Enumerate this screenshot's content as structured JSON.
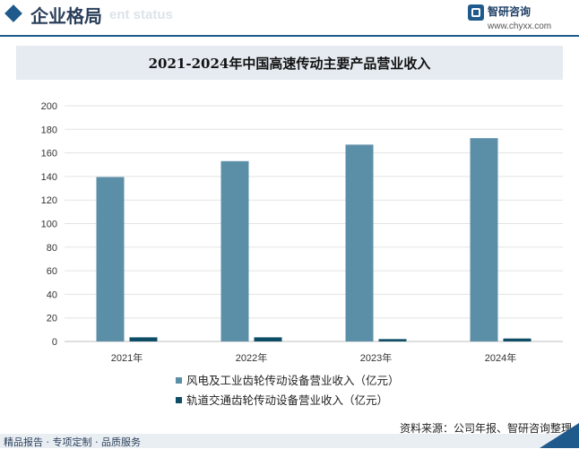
{
  "header": {
    "title": "企业格局",
    "subtitle_en": "ent status",
    "brand_name": "智研咨询",
    "brand_url": "www.chyxx.com"
  },
  "chart_data": {
    "type": "bar",
    "title": "2021-2024年中国高速传动主要产品营业收入",
    "categories": [
      "2021年",
      "2022年",
      "2023年",
      "2024年"
    ],
    "series": [
      {
        "name": "风电及工业齿轮传动设备营业收入（亿元）",
        "color": "#5b8fa8",
        "values": [
          139.5,
          153,
          167,
          172.5
        ]
      },
      {
        "name": "轨道交通齿轮传动设备营业收入（亿元）",
        "color": "#0e4d66",
        "values": [
          3.5,
          3.5,
          2,
          2.5
        ]
      }
    ],
    "ylim": [
      0,
      200
    ],
    "yticks": [
      0,
      20,
      40,
      60,
      80,
      100,
      120,
      140,
      160,
      180,
      200
    ],
    "grid": true,
    "legend_position": "bottom"
  },
  "footer": {
    "source": "资料来源：公司年报、智研咨询整理",
    "tagline": "精品报告 · 专项定制 · 品质服务"
  }
}
